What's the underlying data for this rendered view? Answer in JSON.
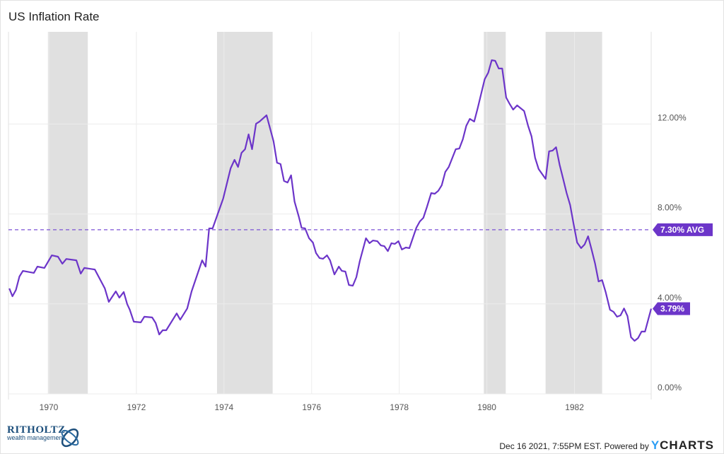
{
  "chart_data": {
    "type": "line",
    "title": "US Inflation Rate",
    "xlabel": "",
    "ylabel": "",
    "xlim": [
      1969.08,
      1983.75
    ],
    "ylim": [
      0,
      16
    ],
    "grid": true,
    "x_ticks": [
      1970,
      1972,
      1974,
      1976,
      1978,
      1980,
      1982
    ],
    "x_tick_labels": [
      "1970",
      "1972",
      "1974",
      "1976",
      "1978",
      "1980",
      "1982"
    ],
    "y_ticks": [
      0,
      4,
      8,
      12
    ],
    "y_tick_labels": [
      "0.00%",
      "4.00%",
      "8.00%",
      "12.00%"
    ],
    "line_color": "#6c35c9",
    "recession_shading_color": "#e0e0e0",
    "recessions": [
      [
        1969.98,
        1970.89
      ],
      [
        1973.84,
        1975.11
      ],
      [
        1979.93,
        1980.43
      ],
      [
        1981.34,
        1982.63
      ]
    ],
    "average": {
      "value": 7.3,
      "label": "7.30% AVG"
    },
    "last_value": {
      "value": 3.79,
      "label": "3.79%"
    },
    "series": [
      {
        "x": [
          1969.1,
          1969.17,
          1969.25,
          1969.33,
          1969.41,
          1969.66,
          1969.74,
          1969.9,
          1970.07,
          1970.21,
          1970.31,
          1970.4,
          1970.63,
          1970.73,
          1970.81,
          1971.05,
          1971.28,
          1971.37,
          1971.53,
          1971.61,
          1971.71,
          1971.79,
          1971.85,
          1971.94,
          1972.1,
          1972.18,
          1972.36,
          1972.44,
          1972.52,
          1972.6,
          1972.68,
          1972.92,
          1973.0,
          1973.16,
          1973.26,
          1973.5,
          1973.58,
          1973.66,
          1973.74,
          1973.98,
          1974.15,
          1974.24,
          1974.32,
          1974.4,
          1974.48,
          1974.56,
          1974.64,
          1974.73,
          1974.81,
          1974.97,
          1975.13,
          1975.21,
          1975.29,
          1975.37,
          1975.45,
          1975.53,
          1975.61,
          1975.71,
          1975.77,
          1975.85,
          1975.94,
          1976.03,
          1976.1,
          1976.18,
          1976.26,
          1976.35,
          1976.42,
          1976.52,
          1976.62,
          1976.69,
          1976.77,
          1976.85,
          1976.94,
          1977.02,
          1977.1,
          1977.24,
          1977.32,
          1977.4,
          1977.5,
          1977.58,
          1977.66,
          1977.74,
          1977.82,
          1977.9,
          1977.98,
          1978.06,
          1978.15,
          1978.23,
          1978.39,
          1978.47,
          1978.55,
          1978.63,
          1978.73,
          1978.81,
          1978.89,
          1978.97,
          1979.05,
          1979.13,
          1979.29,
          1979.37,
          1979.45,
          1979.53,
          1979.61,
          1979.71,
          1979.79,
          1979.95,
          1980.03,
          1980.11,
          1980.19,
          1980.27,
          1980.35,
          1980.44,
          1980.52,
          1980.6,
          1980.69,
          1980.85,
          1980.94,
          1981.02,
          1981.1,
          1981.18,
          1981.34,
          1981.42,
          1981.5,
          1981.58,
          1981.66,
          1981.74,
          1981.82,
          1981.9,
          1981.98,
          1982.06,
          1982.15,
          1982.23,
          1982.31,
          1982.39,
          1982.47,
          1982.55,
          1982.63,
          1982.71,
          1982.81,
          1982.89,
          1982.97,
          1983.05,
          1983.13,
          1983.21,
          1983.29,
          1983.37,
          1983.45,
          1983.53,
          1983.61,
          1983.75
        ],
        "values": [
          4.69,
          4.34,
          4.62,
          5.22,
          5.47,
          5.38,
          5.66,
          5.6,
          6.16,
          6.1,
          5.79,
          6.0,
          5.94,
          5.35,
          5.6,
          5.53,
          4.69,
          4.09,
          4.56,
          4.28,
          4.53,
          3.99,
          3.74,
          3.21,
          3.18,
          3.43,
          3.4,
          3.15,
          2.64,
          2.83,
          2.83,
          3.58,
          3.3,
          3.8,
          4.56,
          5.94,
          5.66,
          7.36,
          7.36,
          8.68,
          10.03,
          10.41,
          10.09,
          10.72,
          10.88,
          11.54,
          10.88,
          12.01,
          12.11,
          12.39,
          11.23,
          10.28,
          10.22,
          9.47,
          9.4,
          9.72,
          8.55,
          7.86,
          7.39,
          7.36,
          6.92,
          6.73,
          6.26,
          6.04,
          6.01,
          6.16,
          5.94,
          5.31,
          5.66,
          5.47,
          5.44,
          4.84,
          4.81,
          5.19,
          5.91,
          6.92,
          6.7,
          6.82,
          6.79,
          6.6,
          6.57,
          6.35,
          6.7,
          6.67,
          6.79,
          6.42,
          6.51,
          6.48,
          7.39,
          7.67,
          7.83,
          8.3,
          8.93,
          8.9,
          9.03,
          9.28,
          9.87,
          10.09,
          10.88,
          10.91,
          11.32,
          11.92,
          12.23,
          12.11,
          12.7,
          13.99,
          14.28,
          14.84,
          14.81,
          14.47,
          14.47,
          13.18,
          12.89,
          12.64,
          12.83,
          12.58,
          11.92,
          11.45,
          10.5,
          10.0,
          9.56,
          10.79,
          10.82,
          10.97,
          10.19,
          9.56,
          8.93,
          8.4,
          7.55,
          6.73,
          6.48,
          6.64,
          7.01,
          6.42,
          5.79,
          5.0,
          5.06,
          4.53,
          3.74,
          3.65,
          3.43,
          3.49,
          3.8,
          3.46,
          2.52,
          2.36,
          2.48,
          2.77,
          2.77,
          3.79
        ]
      }
    ]
  },
  "footer": {
    "logo_name": "RITHOLTZ",
    "logo_sub": "wealth management",
    "timestamp": "Dec 16 2021, 7:55PM EST. Powered by",
    "brand_y": "Y",
    "brand_rest": "CHARTS"
  }
}
